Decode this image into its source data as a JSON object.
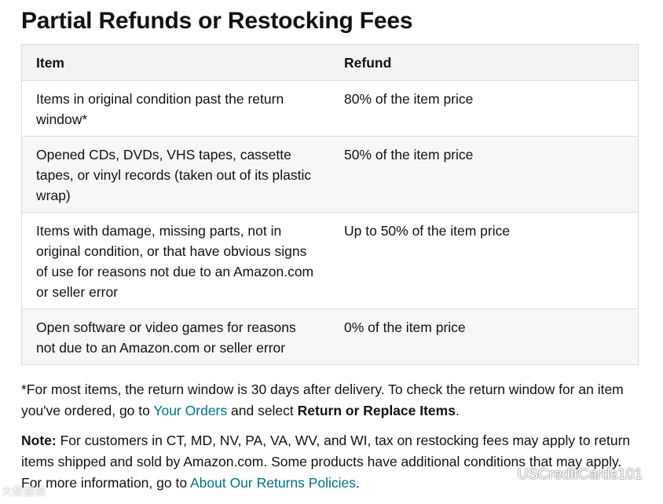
{
  "title": "Partial Refunds or Restocking Fees",
  "table": {
    "headers": {
      "item": "Item",
      "refund": "Refund"
    },
    "rows": [
      {
        "item": "Items in original condition past the return window*",
        "refund": "80% of the item price"
      },
      {
        "item": "Opened CDs, DVDs, VHS tapes, cassette tapes, or vinyl records (taken out of its plastic wrap)",
        "refund": "50% of the item price"
      },
      {
        "item": "Items with damage, missing parts, not in original condition, or that have obvious signs of use for reasons not due to an Amazon.com or seller error",
        "refund": "Up to 50% of the item price"
      },
      {
        "item": "Open software or video games for reasons not due to an Amazon.com or seller error",
        "refund": "0% of the item price"
      }
    ]
  },
  "footnote": {
    "text_before": "*For most items, the return window is 30 days after delivery. To check the return window for an item you've ordered, go to ",
    "link": "Your Orders",
    "text_middle": " and select ",
    "bold": "Return or Replace Items",
    "text_after": "."
  },
  "note": {
    "label": "Note:",
    "text_before": " For customers in CT, MD, NV, PA, VA, WV, and WI, tax on restocking fees may apply to return items shipped and sold by Amazon.com. Some products have additional conditions that may apply. For more information, go to ",
    "link": "About Our Returns Policies",
    "text_after": "."
  },
  "watermarks": {
    "right_text": "USCreditCards101",
    "right_icon": "wechat-icon",
    "left_text": "大数据读"
  },
  "colors": {
    "link": "#007185",
    "header_bg": "#f3f3f3",
    "border": "#dcdcdc"
  }
}
